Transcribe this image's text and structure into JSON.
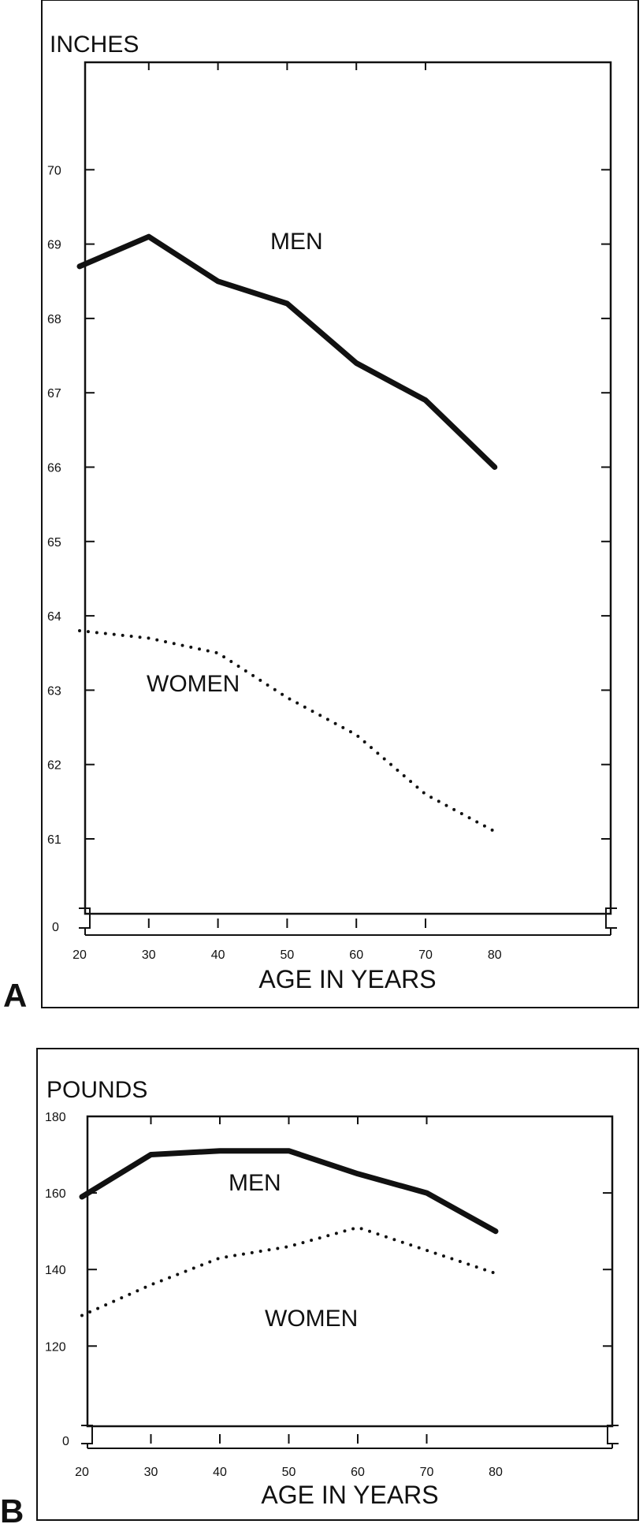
{
  "chart_data": [
    {
      "panel": "A",
      "type": "line",
      "unit_label": "INCHES",
      "xlabel": "AGE IN YEARS",
      "x": [
        20,
        30,
        40,
        50,
        60,
        70,
        80
      ],
      "xticks": [
        "20",
        "30",
        "40",
        "50",
        "60",
        "70",
        "80"
      ],
      "yticks": [
        "70",
        "69",
        "68",
        "67",
        "66",
        "65",
        "64",
        "63",
        "62",
        "61"
      ],
      "ybreak_label": "0",
      "ylim": [
        61,
        70
      ],
      "series": [
        {
          "name": "MEN",
          "style": "solid",
          "values": [
            68.7,
            69.1,
            68.5,
            68.2,
            67.4,
            66.9,
            66.0
          ]
        },
        {
          "name": "WOMEN",
          "style": "dotted",
          "values": [
            63.8,
            63.7,
            63.5,
            62.9,
            62.4,
            61.6,
            61.1
          ]
        }
      ]
    },
    {
      "panel": "B",
      "type": "line",
      "unit_label": "POUNDS",
      "xlabel": "AGE IN YEARS",
      "x": [
        20,
        30,
        40,
        50,
        60,
        70,
        80
      ],
      "xticks": [
        "20",
        "30",
        "40",
        "50",
        "60",
        "70",
        "80"
      ],
      "yticks": [
        "180",
        "160",
        "140",
        "120"
      ],
      "ybreak_label": "0",
      "ylim": [
        115,
        180
      ],
      "series": [
        {
          "name": "MEN",
          "style": "solid",
          "values": [
            159,
            170,
            171,
            171,
            165,
            160,
            150
          ]
        },
        {
          "name": "WOMEN",
          "style": "dotted",
          "values": [
            128,
            136,
            143,
            146,
            151,
            145,
            139
          ]
        }
      ]
    }
  ],
  "colors": {
    "ink": "#111111",
    "background": "#ffffff"
  }
}
